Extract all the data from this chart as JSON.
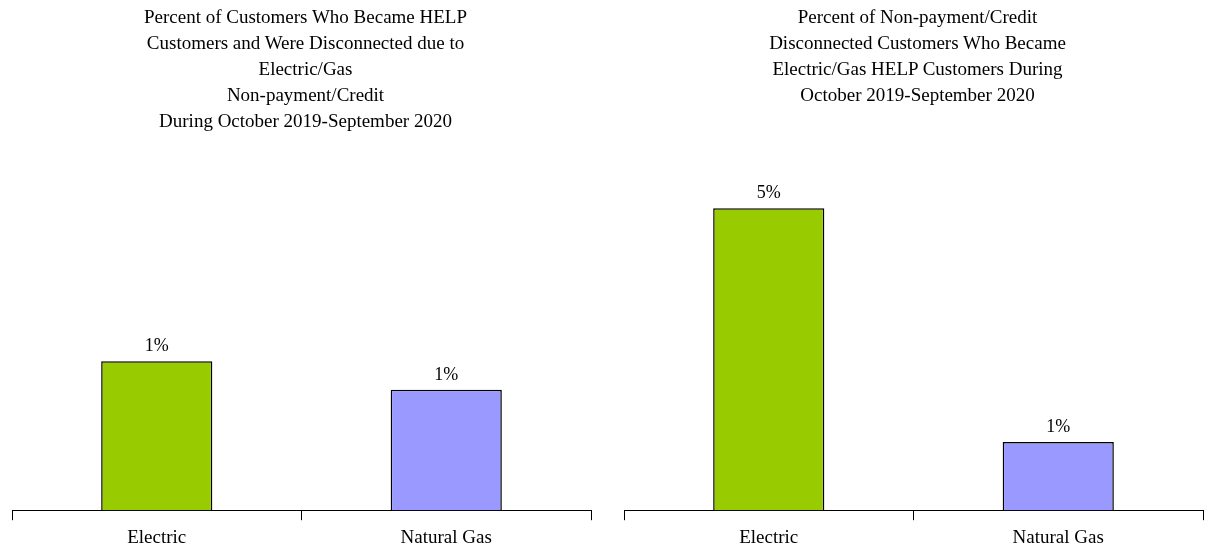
{
  "chart_data": [
    {
      "type": "bar",
      "title": "Percent of Customers Who Became HELP\nCustomers and Were Disconnected due to\nElectric/Gas\nNon-payment/Credit\nDuring October 2019-September 2020",
      "categories": [
        "Electric",
        "Natural Gas"
      ],
      "values": [
        1.2,
        0.97
      ],
      "colors": [
        "#99cc00",
        "#9999ff"
      ],
      "value_labels": [
        "1%",
        "1%"
      ]
    },
    {
      "type": "bar",
      "title": "Percent of Non-payment/Credit\nDisconnected Customers Who Became\nElectric/Gas HELP Customers During\nOctober 2019-September 2020",
      "categories": [
        "Electric",
        "Natural Gas"
      ],
      "values": [
        5,
        1.13
      ],
      "colors": [
        "#99cc00",
        "#9999ff"
      ],
      "value_labels": [
        "5%",
        "1%"
      ]
    }
  ]
}
